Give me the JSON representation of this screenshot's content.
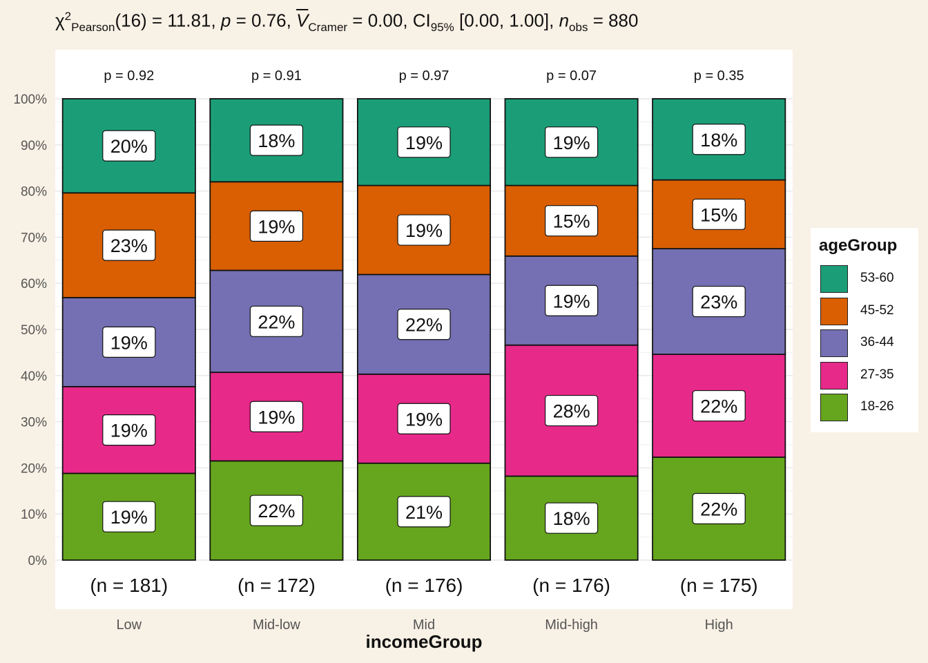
{
  "subtitle": {
    "chi_symbol": "χ",
    "chi_sup": "2",
    "chi_sub": "Pearson",
    "chi_value": "(16) = 11.81, ",
    "p_symbol": "p",
    "p_value": " = 0.76, ",
    "v_symbol": "V",
    "v_sub": "Cramer",
    "v_value": " = 0.00, CI",
    "ci_sub": "95%",
    "ci_value": " [0.00, 1.00], ",
    "n_symbol": "n",
    "n_sub": "obs",
    "n_value": " = 880"
  },
  "chart_data": {
    "type": "bar",
    "stacked": true,
    "percent": true,
    "xlabel": "incomeGroup",
    "ylabel": "",
    "ylim": [
      0,
      100
    ],
    "yticks": [
      "0%",
      "10%",
      "20%",
      "30%",
      "40%",
      "50%",
      "60%",
      "70%",
      "80%",
      "90%",
      "100%"
    ],
    "categories": [
      "Low",
      "Mid-low",
      "Mid",
      "Mid-high",
      "High"
    ],
    "top_labels": [
      "p = 0.92",
      "p = 0.91",
      "p = 0.97",
      "p = 0.07",
      "p = 0.35"
    ],
    "bottom_labels": [
      "(n = 181)",
      "(n = 172)",
      "(n = 176)",
      "(n = 176)",
      "(n = 175)"
    ],
    "series": [
      {
        "name": "18-26",
        "color": "#66a61e",
        "values": [
          18.8,
          21.5,
          21.0,
          18.2,
          22.3
        ],
        "labels": [
          "19%",
          "22%",
          "21%",
          "18%",
          "22%"
        ]
      },
      {
        "name": "27-35",
        "color": "#e7298a",
        "values": [
          18.8,
          19.2,
          19.3,
          28.4,
          22.3
        ],
        "labels": [
          "19%",
          "19%",
          "19%",
          "28%",
          "22%"
        ]
      },
      {
        "name": "36-44",
        "color": "#7570b3",
        "values": [
          19.3,
          22.1,
          21.6,
          19.3,
          22.9
        ],
        "labels": [
          "19%",
          "22%",
          "22%",
          "19%",
          "23%"
        ]
      },
      {
        "name": "45-52",
        "color": "#d95f02",
        "values": [
          22.7,
          19.2,
          19.3,
          15.3,
          14.9
        ],
        "labels": [
          "23%",
          "19%",
          "19%",
          "15%",
          "15%"
        ]
      },
      {
        "name": "53-60",
        "color": "#1b9e77",
        "values": [
          20.4,
          18.0,
          18.8,
          18.8,
          17.6
        ],
        "labels": [
          "20%",
          "18%",
          "19%",
          "19%",
          "18%"
        ]
      }
    ],
    "legend_title": "ageGroup",
    "legend_order": [
      "53-60",
      "45-52",
      "36-44",
      "27-35",
      "18-26"
    ],
    "legend_position": "right",
    "grid": true
  }
}
